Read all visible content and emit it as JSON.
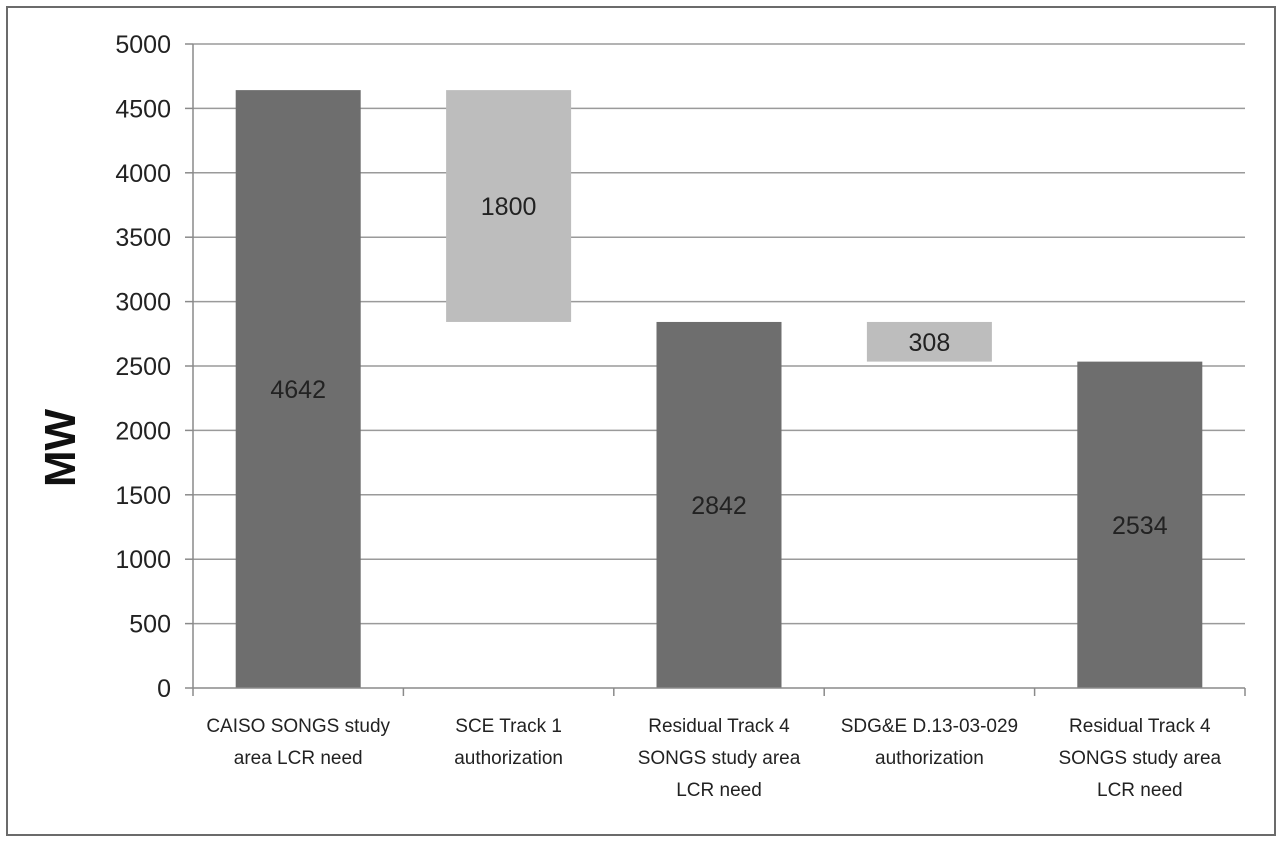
{
  "chart_data": {
    "type": "bar",
    "subtype": "waterfall",
    "ylabel": "MW",
    "ylim": [
      0,
      5000
    ],
    "yticks": [
      0,
      500,
      1000,
      1500,
      2000,
      2500,
      3000,
      3500,
      4000,
      4500,
      5000
    ],
    "grid": true,
    "legend": "none",
    "categories": [
      [
        "CAISO SONGS study",
        "area LCR need"
      ],
      [
        "SCE Track 1",
        "authorization"
      ],
      [
        "Residual Track 4",
        "SONGS study area",
        "LCR need"
      ],
      [
        "SDG&E D.13-03-029",
        "authorization"
      ],
      [
        "Residual Track 4",
        "SONGS study area",
        "LCR need"
      ]
    ],
    "bars": [
      {
        "kind": "total",
        "start": 0,
        "end": 4642,
        "label": "4642"
      },
      {
        "kind": "decrease",
        "start": 2842,
        "end": 4642,
        "label": "1800"
      },
      {
        "kind": "total",
        "start": 0,
        "end": 2842,
        "label": "2842"
      },
      {
        "kind": "decrease",
        "start": 2534,
        "end": 2842,
        "label": "308"
      },
      {
        "kind": "total",
        "start": 0,
        "end": 2534,
        "label": "2534"
      }
    ],
    "colors": {
      "total": "#6e6e6e",
      "decrease": "#bdbdbd",
      "grid": "#9a9a9a",
      "axis": "#8a8a8a"
    }
  }
}
